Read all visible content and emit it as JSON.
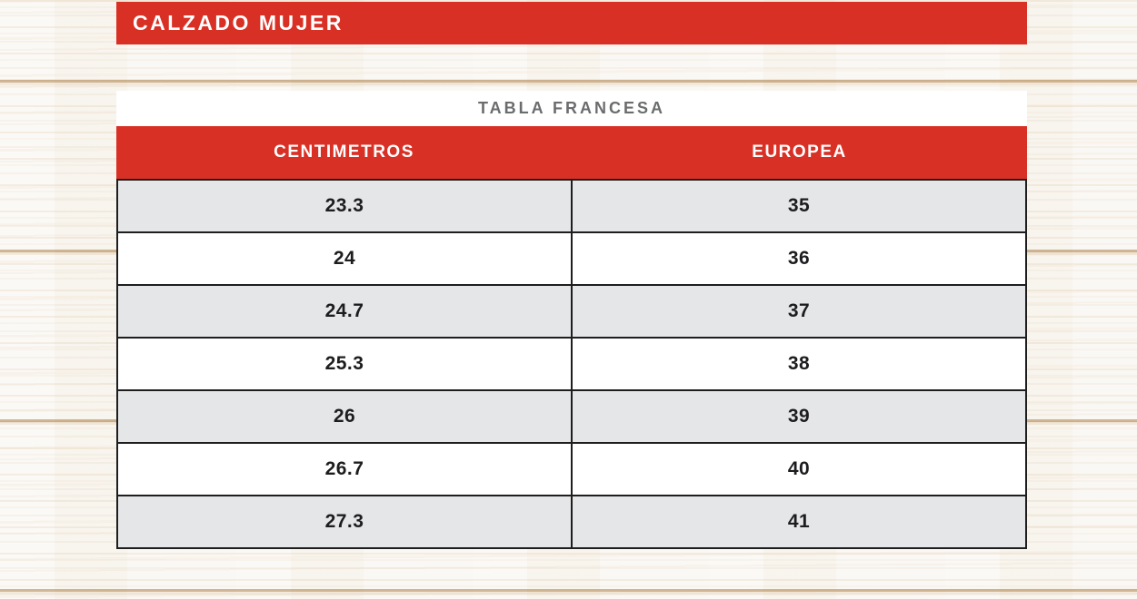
{
  "banner": {
    "title": "CALZADO MUJER"
  },
  "table": {
    "title": "TABLA FRANCESA",
    "columns": [
      "CENTIMETROS",
      "EUROPEA"
    ],
    "rows": [
      [
        "23.3",
        "35"
      ],
      [
        "24",
        "36"
      ],
      [
        "24.7",
        "37"
      ],
      [
        "25.3",
        "38"
      ],
      [
        "26",
        "39"
      ],
      [
        "26.7",
        "40"
      ],
      [
        "27.3",
        "41"
      ]
    ]
  },
  "colors": {
    "accent_red": "#D93025",
    "banner_text": "#FFFFFF",
    "table_title_gray": "#6B6C6E",
    "row_alt_gray": "#E5E6E8",
    "row_white": "#FFFFFF",
    "border_dark": "#1E1E1E",
    "cell_text": "#1D1D1F",
    "wood_base": "#F9F6F1"
  },
  "chart_data": {
    "type": "table",
    "section": "CALZADO MUJER",
    "title": "TABLA FRANCESA",
    "columns": [
      "CENTIMETROS",
      "EUROPEA"
    ],
    "rows": [
      [
        23.3,
        35
      ],
      [
        24,
        36
      ],
      [
        24.7,
        37
      ],
      [
        25.3,
        38
      ],
      [
        26,
        39
      ],
      [
        26.7,
        40
      ],
      [
        27.3,
        41
      ]
    ]
  }
}
